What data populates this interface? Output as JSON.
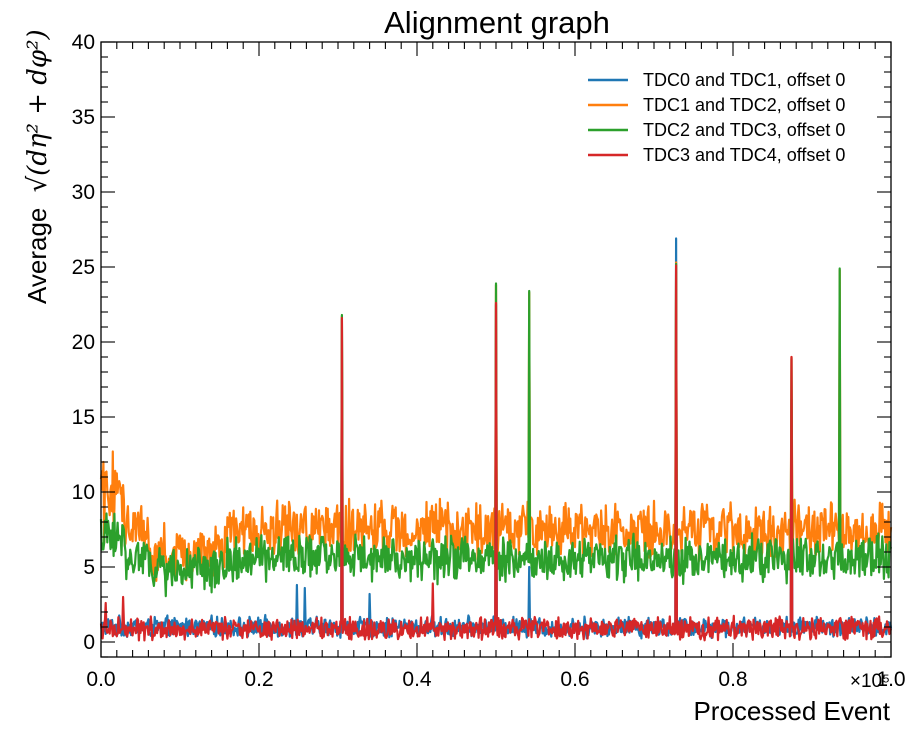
{
  "chart_data": {
    "type": "line",
    "title": "Alignment graph",
    "xlabel": "Processed Event",
    "ylabel_prefix": "Average",
    "ylabel_math": "√(dη² + dφ²)",
    "x_multiplier": "×10⁵",
    "xlim": [
      0,
      1.0
    ],
    "ylim": [
      -1,
      40
    ],
    "x_ticks": [
      "0.0",
      "0.2",
      "0.4",
      "0.6",
      "0.8",
      "1.0"
    ],
    "y_ticks": [
      "0",
      "5",
      "10",
      "15",
      "20",
      "25",
      "30",
      "35",
      "40"
    ],
    "legend_position": "top-right",
    "grid": false,
    "series": [
      {
        "name": "TDC0 and TDC1, offset 0",
        "color": "#1f77b4",
        "base": 1.0,
        "noise": 0.8,
        "spikes": [
          [
            0.248,
            3.8
          ],
          [
            0.258,
            3.6
          ],
          [
            0.305,
            21.5
          ],
          [
            0.34,
            3.2
          ],
          [
            0.5,
            22.5
          ],
          [
            0.542,
            5.0
          ],
          [
            0.728,
            26.9
          ],
          [
            0.874,
            16.2
          ]
        ]
      },
      {
        "name": "TDC1 and TDC2, offset 0",
        "color": "#ff7f0e",
        "base": 7.5,
        "noise": 2.2,
        "spikes": [
          [
            0.003,
            12.0
          ],
          [
            0.015,
            12.7
          ],
          [
            0.305,
            21.7
          ],
          [
            0.5,
            23.8
          ],
          [
            0.542,
            23.3
          ],
          [
            0.728,
            25.3
          ],
          [
            0.874,
            19.0
          ],
          [
            0.935,
            24.8
          ]
        ]
      },
      {
        "name": "TDC2 and TDC3, offset 0",
        "color": "#2ca02c",
        "base": 5.6,
        "noise": 1.8,
        "spikes": [
          [
            0.305,
            21.8
          ],
          [
            0.5,
            23.9
          ],
          [
            0.542,
            23.4
          ],
          [
            0.728,
            25.2
          ],
          [
            0.874,
            18.9
          ],
          [
            0.935,
            24.9
          ]
        ]
      },
      {
        "name": "TDC3 and TDC4, offset 0",
        "color": "#d62728",
        "base": 0.9,
        "noise": 0.9,
        "spikes": [
          [
            0.006,
            2.6
          ],
          [
            0.028,
            3.0
          ],
          [
            0.305,
            21.6
          ],
          [
            0.42,
            3.9
          ],
          [
            0.5,
            22.6
          ],
          [
            0.728,
            25.1
          ],
          [
            0.874,
            19.0
          ]
        ]
      }
    ]
  }
}
